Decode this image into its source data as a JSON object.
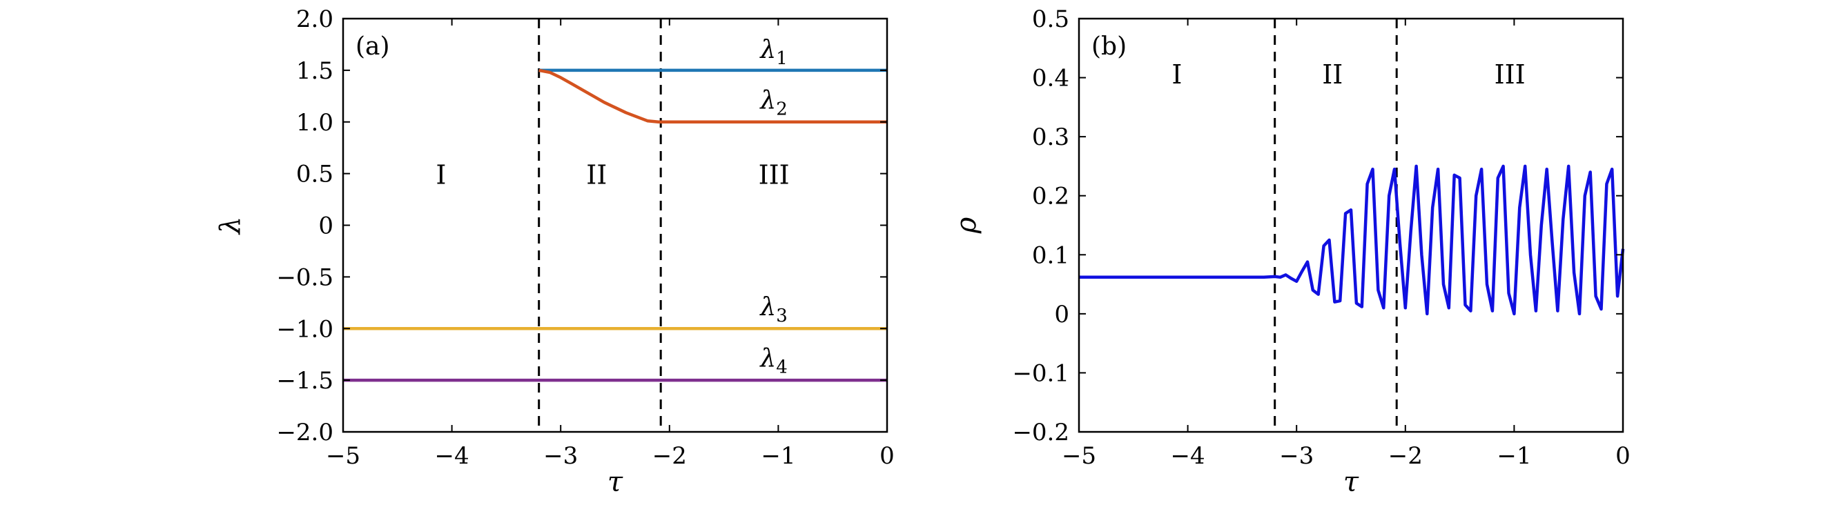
{
  "chart_data": [
    {
      "type": "line",
      "panel_label": "(a)",
      "xlabel": "τ",
      "ylabel": "λ",
      "xlim": [
        -5,
        0
      ],
      "ylim": [
        -2.0,
        2.0
      ],
      "xticks": [
        -5,
        -4,
        -3,
        -2,
        -1,
        0
      ],
      "xtick_labels": [
        "−5",
        "−4",
        "−3",
        "−2",
        "−1",
        "0"
      ],
      "yticks": [
        -2.0,
        -1.5,
        -1.0,
        -0.5,
        0,
        0.5,
        1.0,
        1.5,
        2.0
      ],
      "ytick_labels": [
        "−2.0",
        "−1.5",
        "−1.0",
        "−0.5",
        "0",
        "0.5",
        "1.0",
        "1.5",
        "2.0"
      ],
      "grid": false,
      "vlines": [
        -3.2,
        -2.08
      ],
      "regions": [
        {
          "label": "I",
          "x": -4.1,
          "y": 0.4
        },
        {
          "label": "II",
          "x": -2.67,
          "y": 0.4
        },
        {
          "label": "III",
          "x": -1.04,
          "y": 0.4
        }
      ],
      "series": [
        {
          "name": "λ",
          "sub": "1",
          "color": "#1f77b4",
          "x": [
            -3.2,
            0
          ],
          "y": [
            1.5,
            1.5
          ],
          "label_pos": [
            -1.04,
            1.62
          ]
        },
        {
          "name": "λ",
          "sub": "2",
          "color": "#d4531f",
          "x": [
            -3.2,
            -3.1,
            -3.0,
            -2.9,
            -2.8,
            -2.7,
            -2.6,
            -2.5,
            -2.4,
            -2.3,
            -2.2,
            -2.1,
            -2.08,
            0
          ],
          "y": [
            1.5,
            1.48,
            1.43,
            1.37,
            1.31,
            1.25,
            1.19,
            1.14,
            1.09,
            1.05,
            1.01,
            1.0,
            1.0,
            1.0
          ],
          "label_pos": [
            -1.04,
            1.13
          ]
        },
        {
          "name": "λ",
          "sub": "3",
          "color": "#e8b030",
          "x": [
            -5,
            0
          ],
          "y": [
            -1.0,
            -1.0
          ],
          "label_pos": [
            -1.04,
            -0.87
          ]
        },
        {
          "name": "λ",
          "sub": "4",
          "color": "#7e2f8e",
          "x": [
            -5,
            0
          ],
          "y": [
            -1.5,
            -1.5
          ],
          "label_pos": [
            -1.04,
            -1.37
          ]
        }
      ]
    },
    {
      "type": "line",
      "panel_label": "(b)",
      "xlabel": "τ",
      "ylabel": "ρ",
      "xlim": [
        -5,
        0
      ],
      "ylim": [
        -0.2,
        0.5
      ],
      "xticks": [
        -5,
        -4,
        -3,
        -2,
        -1,
        0
      ],
      "xtick_labels": [
        "−5",
        "−4",
        "−3",
        "−2",
        "−1",
        "0"
      ],
      "yticks": [
        -0.2,
        -0.1,
        0,
        0.1,
        0.2,
        0.3,
        0.4,
        0.5
      ],
      "ytick_labels": [
        "−0.2",
        "−0.1",
        "0",
        "0.1",
        "0.2",
        "0.3",
        "0.4",
        "0.5"
      ],
      "grid": false,
      "vlines": [
        -3.2,
        -2.08
      ],
      "regions": [
        {
          "label": "I",
          "x": -4.1,
          "y": 0.39
        },
        {
          "label": "II",
          "x": -2.67,
          "y": 0.39
        },
        {
          "label": "III",
          "x": -1.04,
          "y": 0.39
        }
      ],
      "series": [
        {
          "color": "#1010e0",
          "x": [
            -5,
            -3.4,
            -3.3,
            -3.2,
            -3.15,
            -3.1,
            -3.05,
            -3.0,
            -2.95,
            -2.9,
            -2.85,
            -2.8,
            -2.75,
            -2.7,
            -2.65,
            -2.6,
            -2.55,
            -2.5,
            -2.45,
            -2.4,
            -2.35,
            -2.3,
            -2.25,
            -2.2,
            -2.15,
            -2.1,
            -2.05,
            -2.0,
            -1.95,
            -1.9,
            -1.85,
            -1.8,
            -1.75,
            -1.7,
            -1.65,
            -1.6,
            -1.55,
            -1.5,
            -1.45,
            -1.4,
            -1.35,
            -1.3,
            -1.25,
            -1.2,
            -1.15,
            -1.1,
            -1.05,
            -1.0,
            -0.95,
            -0.9,
            -0.85,
            -0.8,
            -0.75,
            -0.7,
            -0.65,
            -0.6,
            -0.55,
            -0.5,
            -0.45,
            -0.4,
            -0.35,
            -0.3,
            -0.25,
            -0.2,
            -0.15,
            -0.1,
            -0.05,
            0
          ],
          "y": [
            0.062,
            0.062,
            0.062,
            0.063,
            0.062,
            0.066,
            0.06,
            0.055,
            0.072,
            0.088,
            0.04,
            0.033,
            0.115,
            0.125,
            0.02,
            0.022,
            0.17,
            0.176,
            0.018,
            0.012,
            0.22,
            0.245,
            0.04,
            0.01,
            0.2,
            0.245,
            0.12,
            0.01,
            0.14,
            0.25,
            0.1,
            0.0,
            0.18,
            0.245,
            0.05,
            0.01,
            0.235,
            0.23,
            0.015,
            0.005,
            0.2,
            0.245,
            0.05,
            0.005,
            0.23,
            0.25,
            0.035,
            0.0,
            0.18,
            0.25,
            0.1,
            0.005,
            0.15,
            0.245,
            0.12,
            0.005,
            0.16,
            0.25,
            0.07,
            0.0,
            0.2,
            0.24,
            0.03,
            0.008,
            0.22,
            0.245,
            0.03,
            0.11
          ]
        }
      ]
    }
  ]
}
